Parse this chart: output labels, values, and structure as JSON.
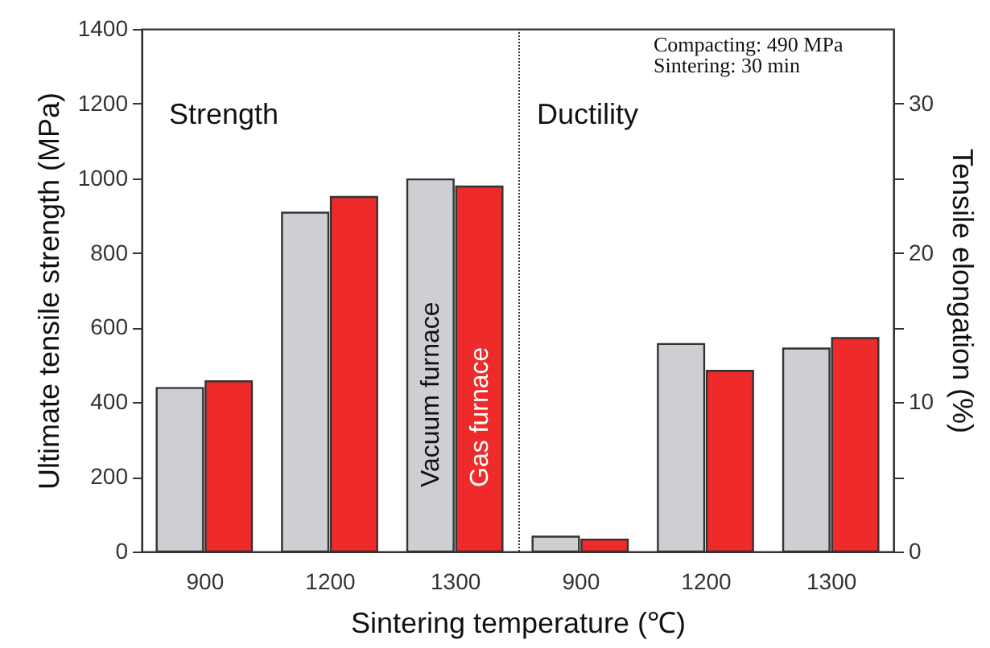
{
  "chart_data": {
    "type": "bar",
    "xlabel": "Sintering temperature (℃)",
    "ylabel": "Ultimate tensile strength (MPa)",
    "y2label": "Tensile elongation (%)",
    "categories": [
      "900",
      "1200",
      "1300",
      "900",
      "1200",
      "1300"
    ],
    "series": [
      {
        "name": "Vacuum furnace",
        "color": "#cdcfd2",
        "values": [
          438,
          908,
          997,
          null,
          null,
          null
        ]
      },
      {
        "name": "Gas furnace",
        "color": "#ee2a2a",
        "values": [
          456,
          950,
          978,
          null,
          null,
          null
        ]
      },
      {
        "color": "#cdcfd2",
        "axis": "y2",
        "values": [
          null,
          null,
          null,
          1.0,
          13.9,
          13.6
        ]
      },
      {
        "color": "#ee2a2a",
        "axis": "y2",
        "values": [
          null,
          null,
          null,
          0.8,
          12.1,
          14.3
        ]
      }
    ],
    "ylim": [
      0,
      1400
    ],
    "yticks": [
      0,
      200,
      400,
      600,
      800,
      1000,
      1200,
      1400
    ],
    "y2lim": [
      0,
      35
    ],
    "y2ticks": [
      0,
      {
        "value": 5,
        "label": null
      },
      10,
      {
        "value": 15,
        "label": null
      },
      20,
      {
        "value": 25,
        "label": null
      },
      30
    ],
    "annotations": [
      "Strength",
      "Ductility",
      "Compacting: 490 MPa",
      "Sintering: 30 min"
    ]
  }
}
